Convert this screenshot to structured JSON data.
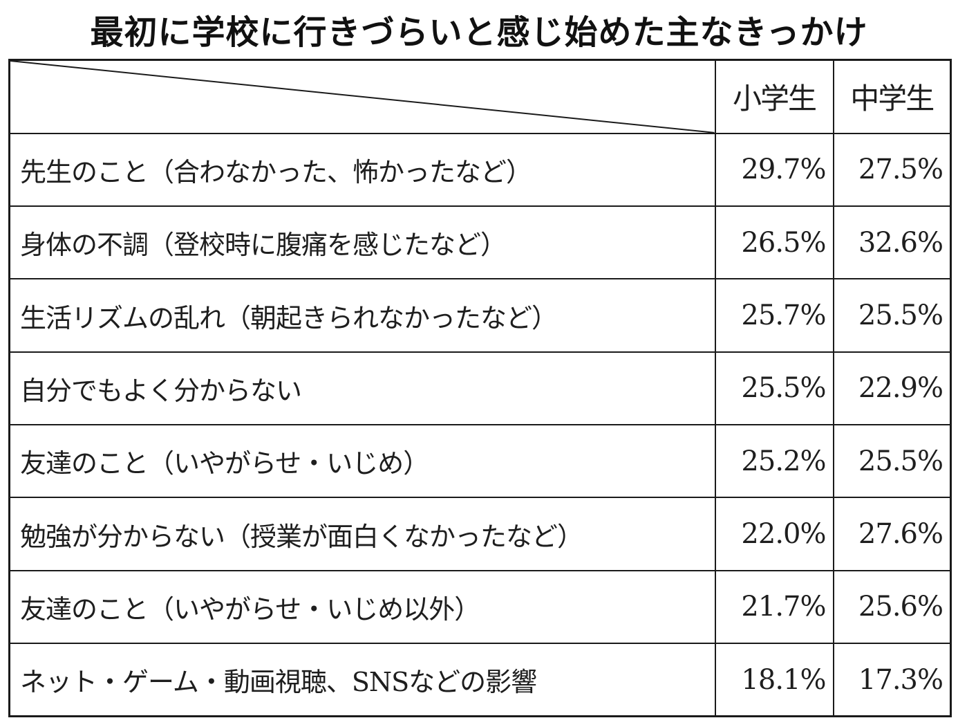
{
  "title": "最初に学校に行きづらいと感じ始めた主なきっかけ",
  "chart_data": {
    "type": "table",
    "columns": [
      "小学生",
      "中学生"
    ],
    "rows": [
      {
        "label": "先生のこと（合わなかった、怖かったなど）",
        "values": [
          "29.7%",
          "27.5%"
        ]
      },
      {
        "label": "身体の不調（登校時に腹痛を感じたなど）",
        "values": [
          "26.5%",
          "32.6%"
        ]
      },
      {
        "label": "生活リズムの乱れ（朝起きられなかったなど）",
        "values": [
          "25.7%",
          "25.5%"
        ]
      },
      {
        "label": "自分でもよく分からない",
        "values": [
          "25.5%",
          "22.9%"
        ]
      },
      {
        "label": "友達のこと（いやがらせ・いじめ）",
        "values": [
          "25.2%",
          "25.5%"
        ]
      },
      {
        "label": "勉強が分からない（授業が面白くなかったなど）",
        "values": [
          "22.0%",
          "27.6%"
        ]
      },
      {
        "label": "友達のこと（いやがらせ・いじめ以外）",
        "values": [
          "21.7%",
          "25.6%"
        ]
      },
      {
        "label": "ネット・ゲーム・動画視聴、SNSなどの影響",
        "values": [
          "18.1%",
          "17.3%"
        ]
      }
    ]
  }
}
